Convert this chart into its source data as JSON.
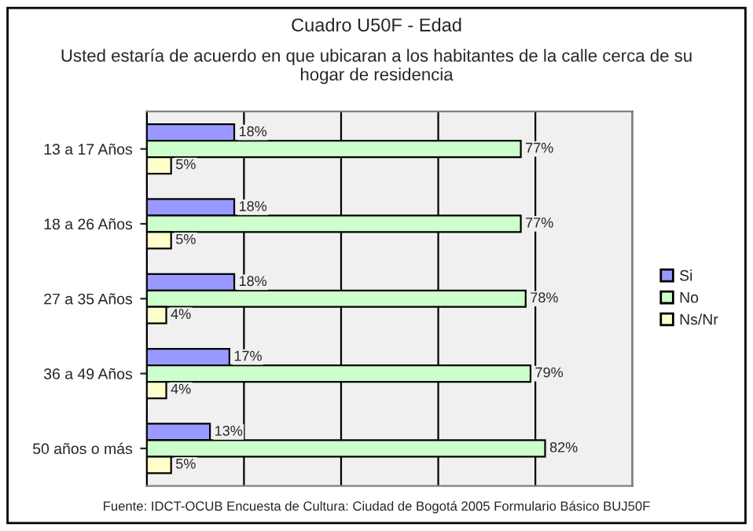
{
  "chart_data": {
    "type": "bar",
    "orientation": "horizontal",
    "title": "Cuadro U50F - Edad",
    "subtitle": "Usted estaría de acuerdo en que ubicaran a los habitantes de la calle cerca de su hogar de residencia",
    "categories": [
      "13 a 17 Años",
      "18 a 26 Años",
      "27 a 35 Años",
      "36 a 49 Años",
      "50 años o más"
    ],
    "series": [
      {
        "name": "Si",
        "color": "#9999ff",
        "values": [
          18,
          18,
          18,
          17,
          13
        ],
        "value_labels": [
          "18%",
          "18%",
          "18%",
          "17%",
          "13%"
        ]
      },
      {
        "name": "No",
        "color": "#ccffcc",
        "values": [
          77,
          77,
          78,
          79,
          82
        ],
        "value_labels": [
          "77%",
          "77%",
          "78%",
          "79%",
          "82%"
        ]
      },
      {
        "name": "Ns/Nr",
        "color": "#ffffcc",
        "values": [
          5,
          5,
          4,
          4,
          5
        ],
        "value_labels": [
          "5%",
          "5%",
          "4%",
          "4%",
          "5%"
        ]
      }
    ],
    "xlim": [
      0,
      100
    ],
    "xticks": [
      {
        "value": 0,
        "label": null
      },
      {
        "value": 20,
        "label": null
      },
      {
        "value": 40,
        "label": null
      },
      {
        "value": 60,
        "label": null
      },
      {
        "value": 80,
        "label": null
      },
      {
        "value": 100,
        "label": null
      }
    ],
    "grid": "x",
    "legend": "right",
    "tick_labels": "y",
    "annotations": [
      "Fuente: IDCT-OCUB Encuesta de Cultura: Ciudad de Bogotá 2005 Formulario Básico BUJ50F"
    ]
  }
}
